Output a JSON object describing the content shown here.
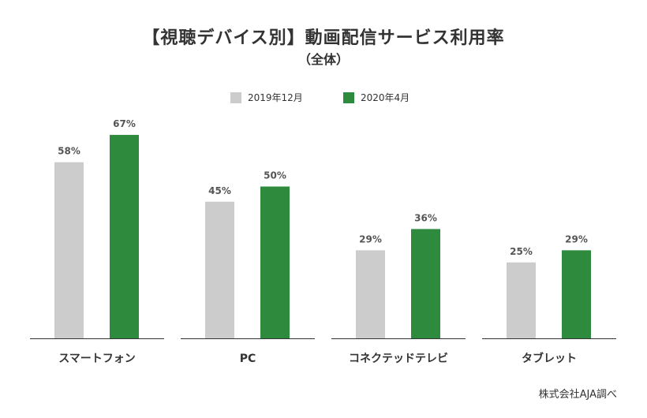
{
  "chart_data": {
    "type": "bar",
    "title": "【視聴デバイス別】動画配信サービス利用率",
    "subtitle": "（全体）",
    "categories": [
      "スマートフォン",
      "PC",
      "コネクテッドテレビ",
      "タブレット"
    ],
    "series": [
      {
        "name": "2019年12月",
        "values": [
          58,
          45,
          29,
          25
        ],
        "labels": [
          "58%",
          "45%",
          "29%",
          "25%"
        ],
        "color": "#cccccc"
      },
      {
        "name": "2020年4月",
        "values": [
          67,
          50,
          36,
          29
        ],
        "labels": [
          "67%",
          "50%",
          "36%",
          "29%"
        ],
        "color": "#2e8b3e"
      }
    ],
    "ylim": [
      0,
      100
    ],
    "grid": false,
    "legend_position": "top-center",
    "source": "株式会社AJA調べ"
  }
}
